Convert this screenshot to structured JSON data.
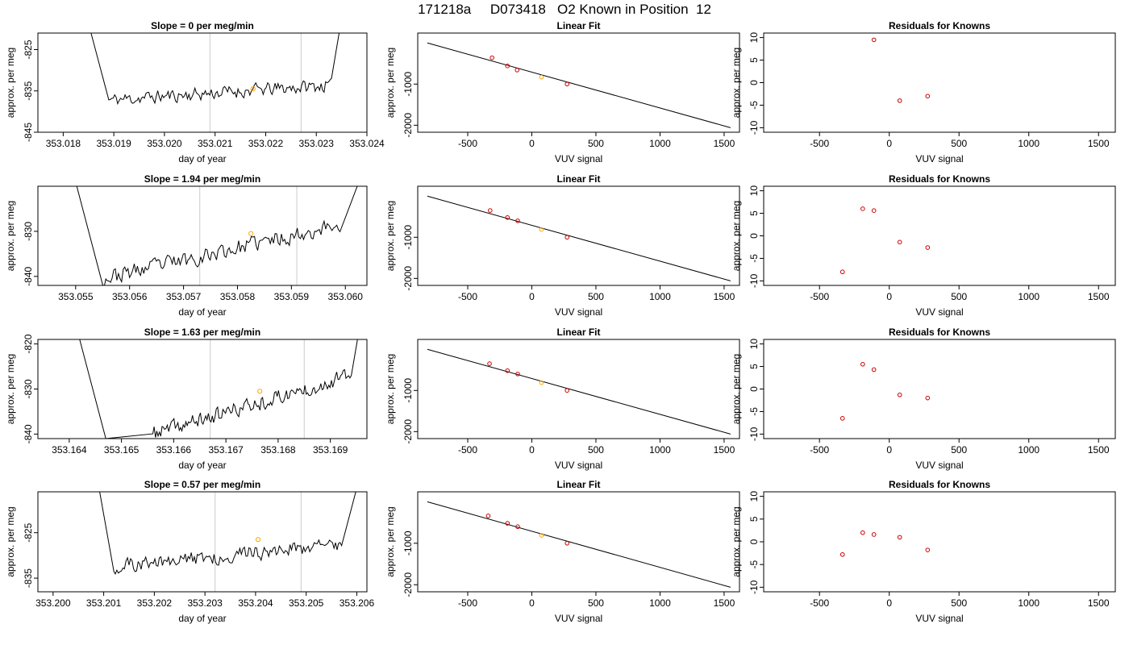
{
  "title": "171218a     D073418   O2 Known in Position  12",
  "colors": {
    "trace": "#000000",
    "vline": "#d3d3d3",
    "marker": "#ffa500",
    "points": "#cc0000",
    "fit": "#000000",
    "frame": "#000000"
  },
  "chart_data": [
    {
      "type": "line",
      "title": "Slope =  0  per meg/min",
      "xlabel": "day of year",
      "ylabel": "approx. per meg",
      "xlim": [
        353.0175,
        353.024
      ],
      "ylim": [
        -845,
        -821
      ],
      "xticks": [
        "353.018",
        "353.019",
        "353.020",
        "353.021",
        "353.022",
        "353.023",
        "353.024"
      ],
      "xtick_values": [
        353.018,
        353.019,
        353.02,
        353.021,
        353.022,
        353.023,
        353.024
      ],
      "yticks": [
        "-825",
        "-835",
        "-845"
      ],
      "ytick_values": [
        -825,
        -835,
        -845
      ],
      "vlines": [
        353.0209,
        353.0227
      ],
      "marker": {
        "x": 353.02175,
        "y": -834.5
      },
      "series": {
        "x_start": 353.01855,
        "x_end": 353.02345,
        "y_start": -821,
        "y_end": -821,
        "plateau_start": 353.0189,
        "plateau_end": 353.0233,
        "base_left": -837.2,
        "base_right": -833.6,
        "noise": 1.6,
        "seed": 11
      }
    },
    {
      "type": "scatter",
      "title": "Linear Fit",
      "xlabel": "VUV signal",
      "ylabel": "approx. per meg",
      "xlim": [
        -890,
        1620
      ],
      "ylim": [
        -2170,
        240
      ],
      "xticks": [
        "-500",
        "0",
        "500",
        "1000",
        "1500"
      ],
      "xtick_values": [
        -500,
        0,
        500,
        1000,
        1500
      ],
      "yticks": [
        "-1000",
        "-2000"
      ],
      "ytick_values": [
        -1000,
        -2000
      ],
      "x": [
        -310,
        -190,
        -115,
        75,
        275
      ],
      "y": [
        -360,
        -560,
        -660,
        -830,
        -1000
      ],
      "highlight_index": 3,
      "fit_line": {
        "x": [
          -815,
          1550
        ],
        "y": [
          0,
          -2060
        ]
      }
    },
    {
      "type": "scatter",
      "title": "Residuals for Knowns",
      "xlabel": "VUV signal",
      "ylabel": "approx. per meg",
      "xlim": [
        -900,
        1620
      ],
      "ylim": [
        -11,
        11
      ],
      "xticks": [
        "-500",
        "0",
        "500",
        "1000",
        "1500"
      ],
      "xtick_values": [
        -500,
        0,
        500,
        1000,
        1500
      ],
      "yticks": [
        "10",
        "5",
        "0",
        "-5",
        "-10"
      ],
      "ytick_values": [
        10,
        5,
        0,
        -5,
        -10
      ],
      "x": [
        -110,
        75,
        275
      ],
      "y": [
        9.5,
        -4.0,
        -3.0
      ]
    },
    {
      "type": "line",
      "title": "Slope =  1.94  per meg/min",
      "xlabel": "day of year",
      "ylabel": "approx. per meg",
      "xlim": [
        353.0543,
        353.0604
      ],
      "ylim": [
        -842,
        -820
      ],
      "xticks": [
        "353.055",
        "353.056",
        "353.057",
        "353.058",
        "353.059",
        "353.060"
      ],
      "xtick_values": [
        353.055,
        353.056,
        353.057,
        353.058,
        353.059,
        353.06
      ],
      "yticks": [
        "-830",
        "-840"
      ],
      "ytick_values": [
        -830,
        -840
      ],
      "vlines": [
        353.0573,
        353.0591
      ],
      "marker": {
        "x": 353.05825,
        "y": -830.5
      },
      "series": {
        "x_start": 353.05502,
        "x_end": 353.06022,
        "y_start": -820,
        "y_end": -820,
        "plateau_start": 353.0555,
        "plateau_end": 353.0599,
        "base_left": -840.5,
        "base_right": -828.5,
        "noise": 1.8,
        "seed": 23
      }
    },
    {
      "type": "scatter",
      "title": "Linear Fit",
      "xlabel": "VUV signal",
      "ylabel": "approx. per meg",
      "xlim": [
        -890,
        1620
      ],
      "ylim": [
        -2170,
        240
      ],
      "xticks": [
        "-500",
        "0",
        "500",
        "1000",
        "1500"
      ],
      "xtick_values": [
        -500,
        0,
        500,
        1000,
        1500
      ],
      "yticks": [
        "-1000",
        "-2000"
      ],
      "ytick_values": [
        -1000,
        -2000
      ],
      "x": [
        -325,
        -190,
        -110,
        75,
        275
      ],
      "y": [
        -350,
        -520,
        -600,
        -810,
        -1000
      ],
      "highlight_index": 3,
      "fit_line": {
        "x": [
          -815,
          1550
        ],
        "y": [
          0,
          -2060
        ]
      }
    },
    {
      "type": "scatter",
      "title": "Residuals for Knowns",
      "xlabel": "VUV signal",
      "ylabel": "approx. per meg",
      "xlim": [
        -900,
        1620
      ],
      "ylim": [
        -11,
        11
      ],
      "xticks": [
        "-500",
        "0",
        "500",
        "1000",
        "1500"
      ],
      "xtick_values": [
        -500,
        0,
        500,
        1000,
        1500
      ],
      "yticks": [
        "10",
        "5",
        "0",
        "-5",
        "-10"
      ],
      "ytick_values": [
        10,
        5,
        0,
        -5,
        -10
      ],
      "x": [
        -335,
        -190,
        -110,
        75,
        275
      ],
      "y": [
        -8.0,
        6.0,
        5.6,
        -1.4,
        -2.6
      ]
    },
    {
      "type": "line",
      "title": "Slope =  1.63  per meg/min",
      "xlabel": "day of year",
      "ylabel": "approx. per meg",
      "xlim": [
        353.1634,
        353.1697
      ],
      "ylim": [
        -841,
        -819
      ],
      "xticks": [
        "353.164",
        "353.165",
        "353.166",
        "353.167",
        "353.168",
        "353.169"
      ],
      "xtick_values": [
        353.164,
        353.165,
        353.166,
        353.167,
        353.168,
        353.169
      ],
      "yticks": [
        "-820",
        "-830",
        "-840"
      ],
      "ytick_values": [
        -820,
        -830,
        -840
      ],
      "vlines": [
        353.1667,
        353.1685
      ],
      "marker": {
        "x": 353.16765,
        "y": -830.5
      },
      "series": {
        "x_start": 353.1642,
        "x_end": 353.16952,
        "y_start": -819,
        "y_end": -819,
        "plateau_start": 353.1656,
        "plateau_end": 353.1694,
        "base_left": -840.0,
        "base_right": -827.0,
        "noise": 1.7,
        "seed": 37,
        "dip_x": 353.1647,
        "dip_y": -841
      }
    },
    {
      "type": "scatter",
      "title": "Linear Fit",
      "xlabel": "VUV signal",
      "ylabel": "approx. per meg",
      "xlim": [
        -890,
        1620
      ],
      "ylim": [
        -2170,
        240
      ],
      "xticks": [
        "-500",
        "0",
        "500",
        "1000",
        "1500"
      ],
      "xtick_values": [
        -500,
        0,
        500,
        1000,
        1500
      ],
      "yticks": [
        "-1000",
        "-2000"
      ],
      "ytick_values": [
        -1000,
        -2000
      ],
      "x": [
        -330,
        -190,
        -110,
        75,
        275
      ],
      "y": [
        -350,
        -520,
        -600,
        -810,
        -1000
      ],
      "highlight_index": 3,
      "fit_line": {
        "x": [
          -815,
          1550
        ],
        "y": [
          0,
          -2060
        ]
      }
    },
    {
      "type": "scatter",
      "title": "Residuals for Knowns",
      "xlabel": "VUV signal",
      "ylabel": "approx. per meg",
      "xlim": [
        -900,
        1620
      ],
      "ylim": [
        -11,
        11
      ],
      "xticks": [
        "-500",
        "0",
        "500",
        "1000",
        "1500"
      ],
      "xtick_values": [
        -500,
        0,
        500,
        1000,
        1500
      ],
      "yticks": [
        "10",
        "5",
        "0",
        "-5",
        "-10"
      ],
      "ytick_values": [
        10,
        5,
        0,
        -5,
        -10
      ],
      "x": [
        -335,
        -190,
        -110,
        75,
        275
      ],
      "y": [
        -6.5,
        5.5,
        4.3,
        -1.3,
        -2.0
      ]
    },
    {
      "type": "line",
      "title": "Slope =  0.57  per meg/min",
      "xlabel": "day of year",
      "ylabel": "approx. per meg",
      "xlim": [
        353.1997,
        353.2062
      ],
      "ylim": [
        -838,
        -816
      ],
      "xticks": [
        "353.200",
        "353.201",
        "353.202",
        "353.203",
        "353.204",
        "353.205",
        "353.206"
      ],
      "xtick_values": [
        353.2,
        353.201,
        353.202,
        353.203,
        353.204,
        353.205,
        353.206
      ],
      "yticks": [
        "-825",
        "-835"
      ],
      "ytick_values": [
        -825,
        -835
      ],
      "vlines": [
        353.2032,
        353.2049
      ],
      "marker": {
        "x": 353.20405,
        "y": -826.5
      },
      "series": {
        "x_start": 353.20092,
        "x_end": 353.20598,
        "y_start": -816,
        "y_end": -816,
        "plateau_start": 353.2012,
        "plateau_end": 353.2057,
        "base_left": -832.5,
        "base_right": -827.5,
        "noise": 1.6,
        "seed": 51
      }
    },
    {
      "type": "scatter",
      "title": "Linear Fit",
      "xlabel": "VUV signal",
      "ylabel": "approx. per meg",
      "xlim": [
        -890,
        1620
      ],
      "ylim": [
        -2170,
        240
      ],
      "xticks": [
        "-500",
        "0",
        "500",
        "1000",
        "1500"
      ],
      "xtick_values": [
        -500,
        0,
        500,
        1000,
        1500
      ],
      "yticks": [
        "-1000",
        "-2000"
      ],
      "ytick_values": [
        -1000,
        -2000
      ],
      "x": [
        -340,
        -190,
        -110,
        75,
        275
      ],
      "y": [
        -340,
        -520,
        -600,
        -810,
        -1000
      ],
      "highlight_index": 3,
      "fit_line": {
        "x": [
          -815,
          1550
        ],
        "y": [
          0,
          -2060
        ]
      }
    },
    {
      "type": "scatter",
      "title": "Residuals for Knowns",
      "xlabel": "VUV signal",
      "ylabel": "approx. per meg",
      "xlim": [
        -900,
        1620
      ],
      "ylim": [
        -11,
        11
      ],
      "xticks": [
        "-500",
        "0",
        "500",
        "1000",
        "1500"
      ],
      "xtick_values": [
        -500,
        0,
        500,
        1000,
        1500
      ],
      "yticks": [
        "10",
        "5",
        "0",
        "-5",
        "-10"
      ],
      "ytick_values": [
        10,
        5,
        0,
        -5,
        -10
      ],
      "x": [
        -335,
        -190,
        -110,
        75,
        275
      ],
      "y": [
        -2.8,
        2.0,
        1.6,
        1.0,
        -1.8
      ]
    }
  ]
}
